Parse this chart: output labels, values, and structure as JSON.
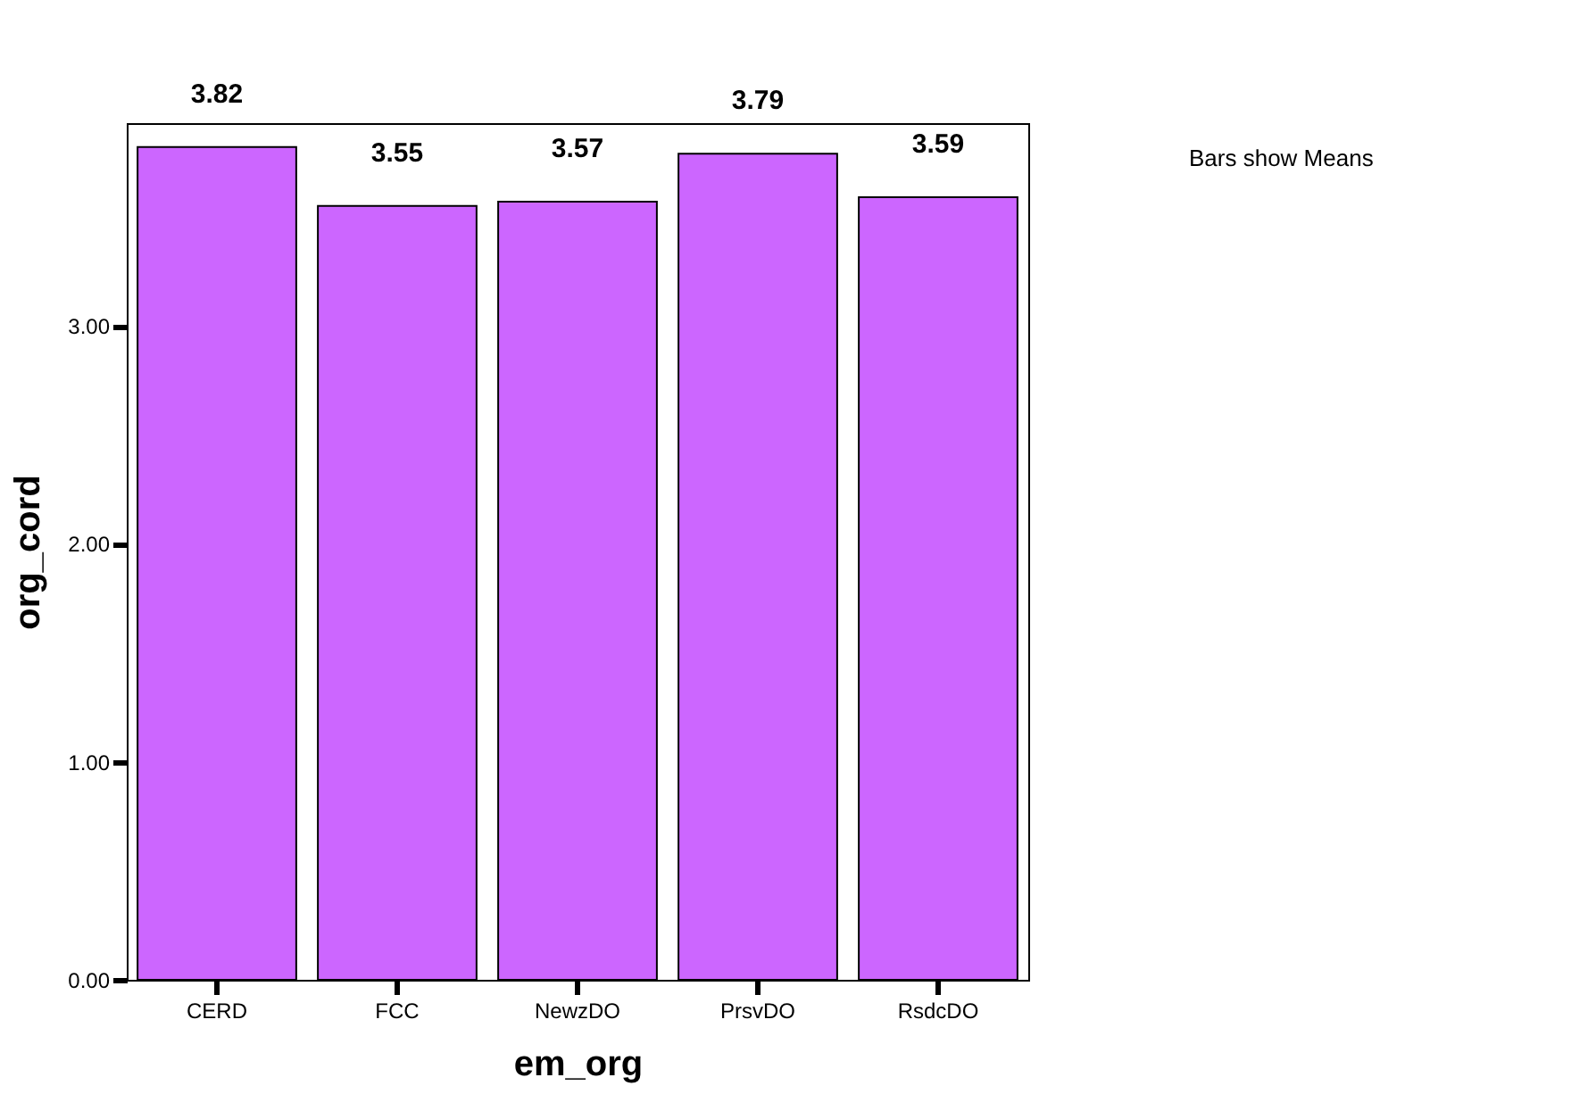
{
  "chart_data": {
    "type": "bar",
    "xlabel": "em_org",
    "ylabel": "org_cord",
    "categories": [
      "CERD",
      "FCC",
      "NewzDO",
      "PrsvDO",
      "RsdcDO"
    ],
    "values": [
      3.82,
      3.55,
      3.57,
      3.79,
      3.59
    ],
    "color": "#cc66ff",
    "ylim": [
      0,
      3.93
    ],
    "yticks": [
      {
        "value": 0,
        "label": "0.00"
      },
      {
        "value": 1,
        "label": "1.00"
      },
      {
        "value": 2,
        "label": "2.00"
      },
      {
        "value": 3,
        "label": "3.00"
      }
    ],
    "data_labels": true,
    "grid": false,
    "annotations": [
      "Bars show Means"
    ]
  }
}
